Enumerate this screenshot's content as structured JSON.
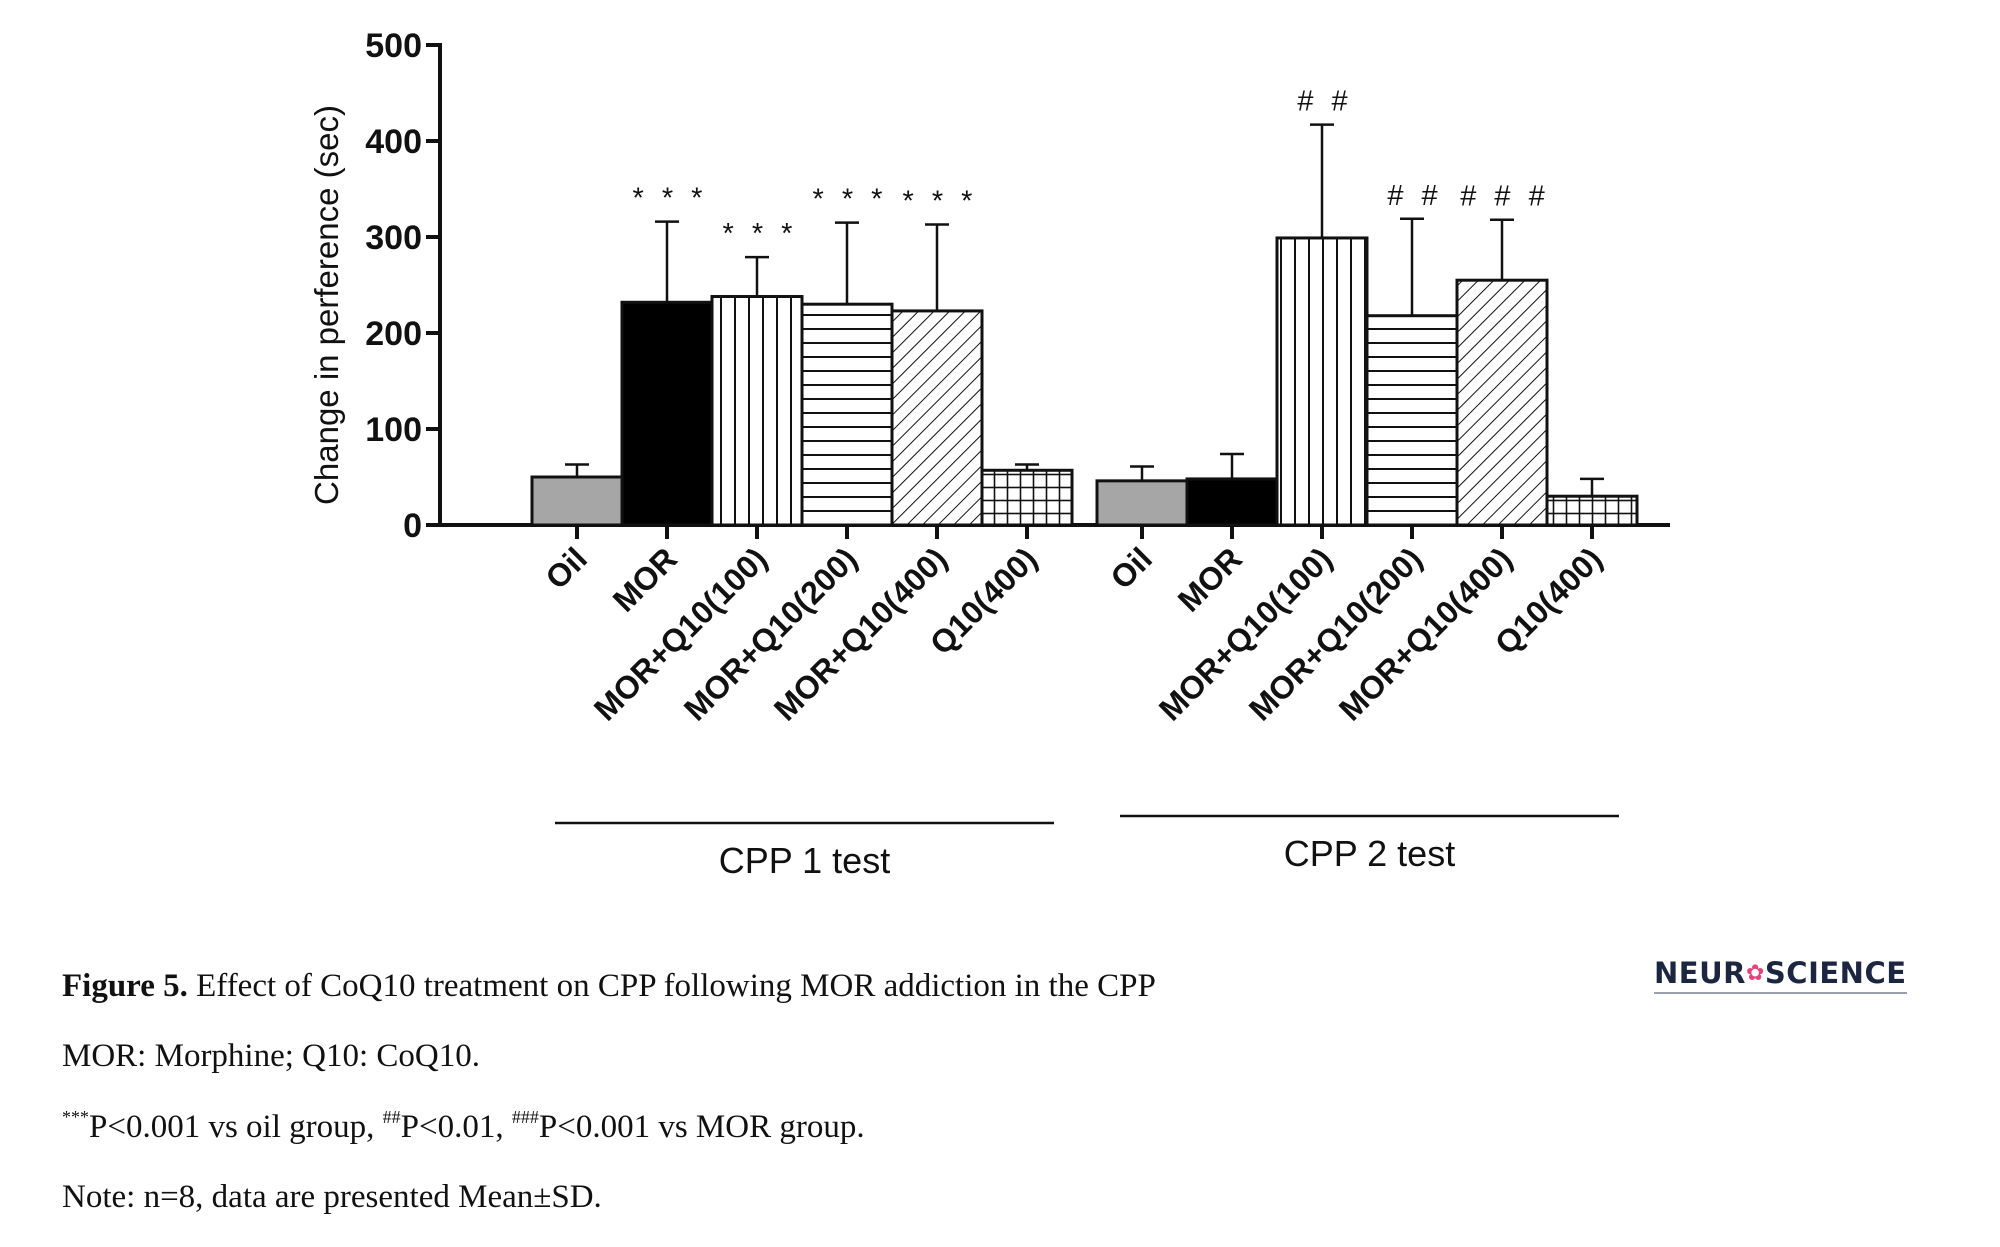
{
  "chart_data": {
    "type": "bar",
    "ylabel": "Change in perference (sec)",
    "ylim": [
      0,
      500
    ],
    "yticks": [
      0,
      100,
      200,
      300,
      400,
      500
    ],
    "grid": false,
    "groups": [
      {
        "name": "CPP 1 test",
        "bars": [
          {
            "category": "Oil",
            "value": 50,
            "error": 13,
            "pattern": "gray",
            "annotation": ""
          },
          {
            "category": "MOR",
            "value": 232,
            "error": 84,
            "pattern": "black",
            "annotation": "***"
          },
          {
            "category": "MOR+Q10(100)",
            "value": 238,
            "error": 41,
            "pattern": "vertical",
            "annotation": "***"
          },
          {
            "category": "MOR+Q10(200)",
            "value": 230,
            "error": 85,
            "pattern": "horizontal",
            "annotation": "***"
          },
          {
            "category": "MOR+Q10(400)",
            "value": 223,
            "error": 90,
            "pattern": "diagonal",
            "annotation": "***"
          },
          {
            "category": "Q10(400)",
            "value": 57,
            "error": 6,
            "pattern": "grid",
            "annotation": ""
          }
        ]
      },
      {
        "name": "CPP 2 test",
        "bars": [
          {
            "category": "Oil",
            "value": 46,
            "error": 15,
            "pattern": "gray",
            "annotation": ""
          },
          {
            "category": "MOR",
            "value": 48,
            "error": 26,
            "pattern": "black",
            "annotation": ""
          },
          {
            "category": "MOR+Q10(100)",
            "value": 299,
            "error": 118,
            "pattern": "vertical",
            "annotation": "##"
          },
          {
            "category": "MOR+Q10(200)",
            "value": 218,
            "error": 101,
            "pattern": "horizontal",
            "annotation": "##"
          },
          {
            "category": "MOR+Q10(400)",
            "value": 255,
            "error": 63,
            "pattern": "diagonal",
            "annotation": "###"
          },
          {
            "category": "Q10(400)",
            "value": 30,
            "error": 18,
            "pattern": "grid",
            "annotation": ""
          }
        ]
      }
    ],
    "colors": {
      "gray": "#a6a6a6",
      "black": "#000000",
      "line": "#111111"
    }
  },
  "caption": {
    "figure_label": "Figure 5.",
    "figure_text": " Effect of CoQ10 treatment on CPP following MOR addiction in the CPP",
    "abbreviations": "MOR: Morphine; Q10: CoQ10.",
    "sig_sup1": "***",
    "sig_text1": "P<0.001 vs oil group, ",
    "sig_sup2": "##",
    "sig_text2": "P<0.01, ",
    "sig_sup3": "###",
    "sig_text3": "P<0.001 vs MOR group.",
    "note": "Note: n=8, data are presented Mean±SD."
  },
  "logo": {
    "text_left": "NEUR",
    "text_right": "SCIENCE"
  }
}
